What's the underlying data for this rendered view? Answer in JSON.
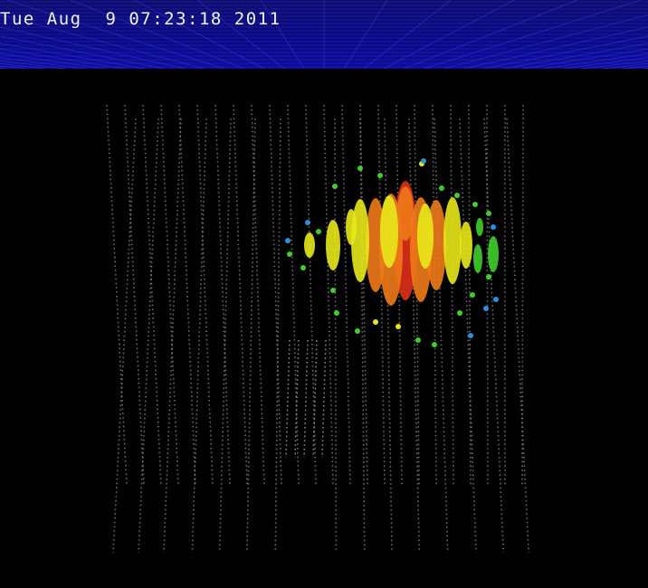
{
  "header": {
    "timestamp": "Tue Aug  9 07:23:18 2011"
  },
  "colors": {
    "background": "#000000",
    "header_blue": "#0a0a86",
    "grid_line": "#4a4aff",
    "dom_dot": "#8c8c8c",
    "hit_red": "#e0301a",
    "hit_orange": "#f07a18",
    "hit_yellow": "#e8e81a",
    "hit_green": "#3ecf2a",
    "hit_blue": "#2a8fe0"
  }
}
